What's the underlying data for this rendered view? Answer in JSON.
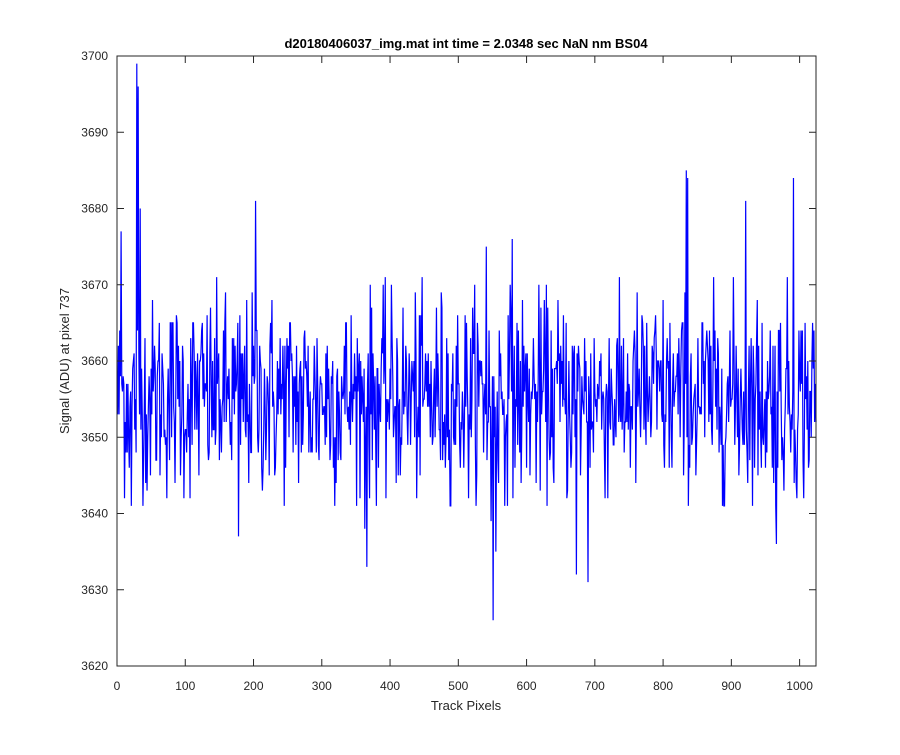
{
  "chart_data": {
    "type": "line",
    "title": "d20180406037_img.mat int time = 2.0348 sec  NaN nm BS04",
    "xlabel": "Track Pixels",
    "ylabel": "Signal (ADU) at pixel 737",
    "xlim": [
      0,
      1024
    ],
    "ylim": [
      3620,
      3700
    ],
    "xticks": [
      "0",
      "100",
      "200",
      "300",
      "400",
      "500",
      "600",
      "700",
      "800",
      "900",
      "1000"
    ],
    "yticks": [
      "3620",
      "3630",
      "3640",
      "3650",
      "3660",
      "3670",
      "3680",
      "3690",
      "3700"
    ],
    "grid": false,
    "line_color": "#0000ff",
    "series": [
      {
        "x_start": 1,
        "x_step": 1,
        "points": 1024,
        "mean": 3655.3,
        "std": 6.5,
        "notable_points": [
          {
            "x": 29,
            "y": 3699
          },
          {
            "x": 31,
            "y": 3696
          },
          {
            "x": 34,
            "y": 3680
          },
          {
            "x": 6,
            "y": 3677
          },
          {
            "x": 21,
            "y": 3641
          },
          {
            "x": 178,
            "y": 3637
          },
          {
            "x": 203,
            "y": 3681
          },
          {
            "x": 366,
            "y": 3633
          },
          {
            "x": 363,
            "y": 3638
          },
          {
            "x": 541,
            "y": 3675
          },
          {
            "x": 548,
            "y": 3639
          },
          {
            "x": 551,
            "y": 3626
          },
          {
            "x": 555,
            "y": 3635
          },
          {
            "x": 579,
            "y": 3676
          },
          {
            "x": 673,
            "y": 3632
          },
          {
            "x": 690,
            "y": 3631
          },
          {
            "x": 834,
            "y": 3685
          },
          {
            "x": 836,
            "y": 3684
          },
          {
            "x": 921,
            "y": 3681
          },
          {
            "x": 966,
            "y": 3636
          },
          {
            "x": 991,
            "y": 3684
          }
        ]
      }
    ]
  }
}
